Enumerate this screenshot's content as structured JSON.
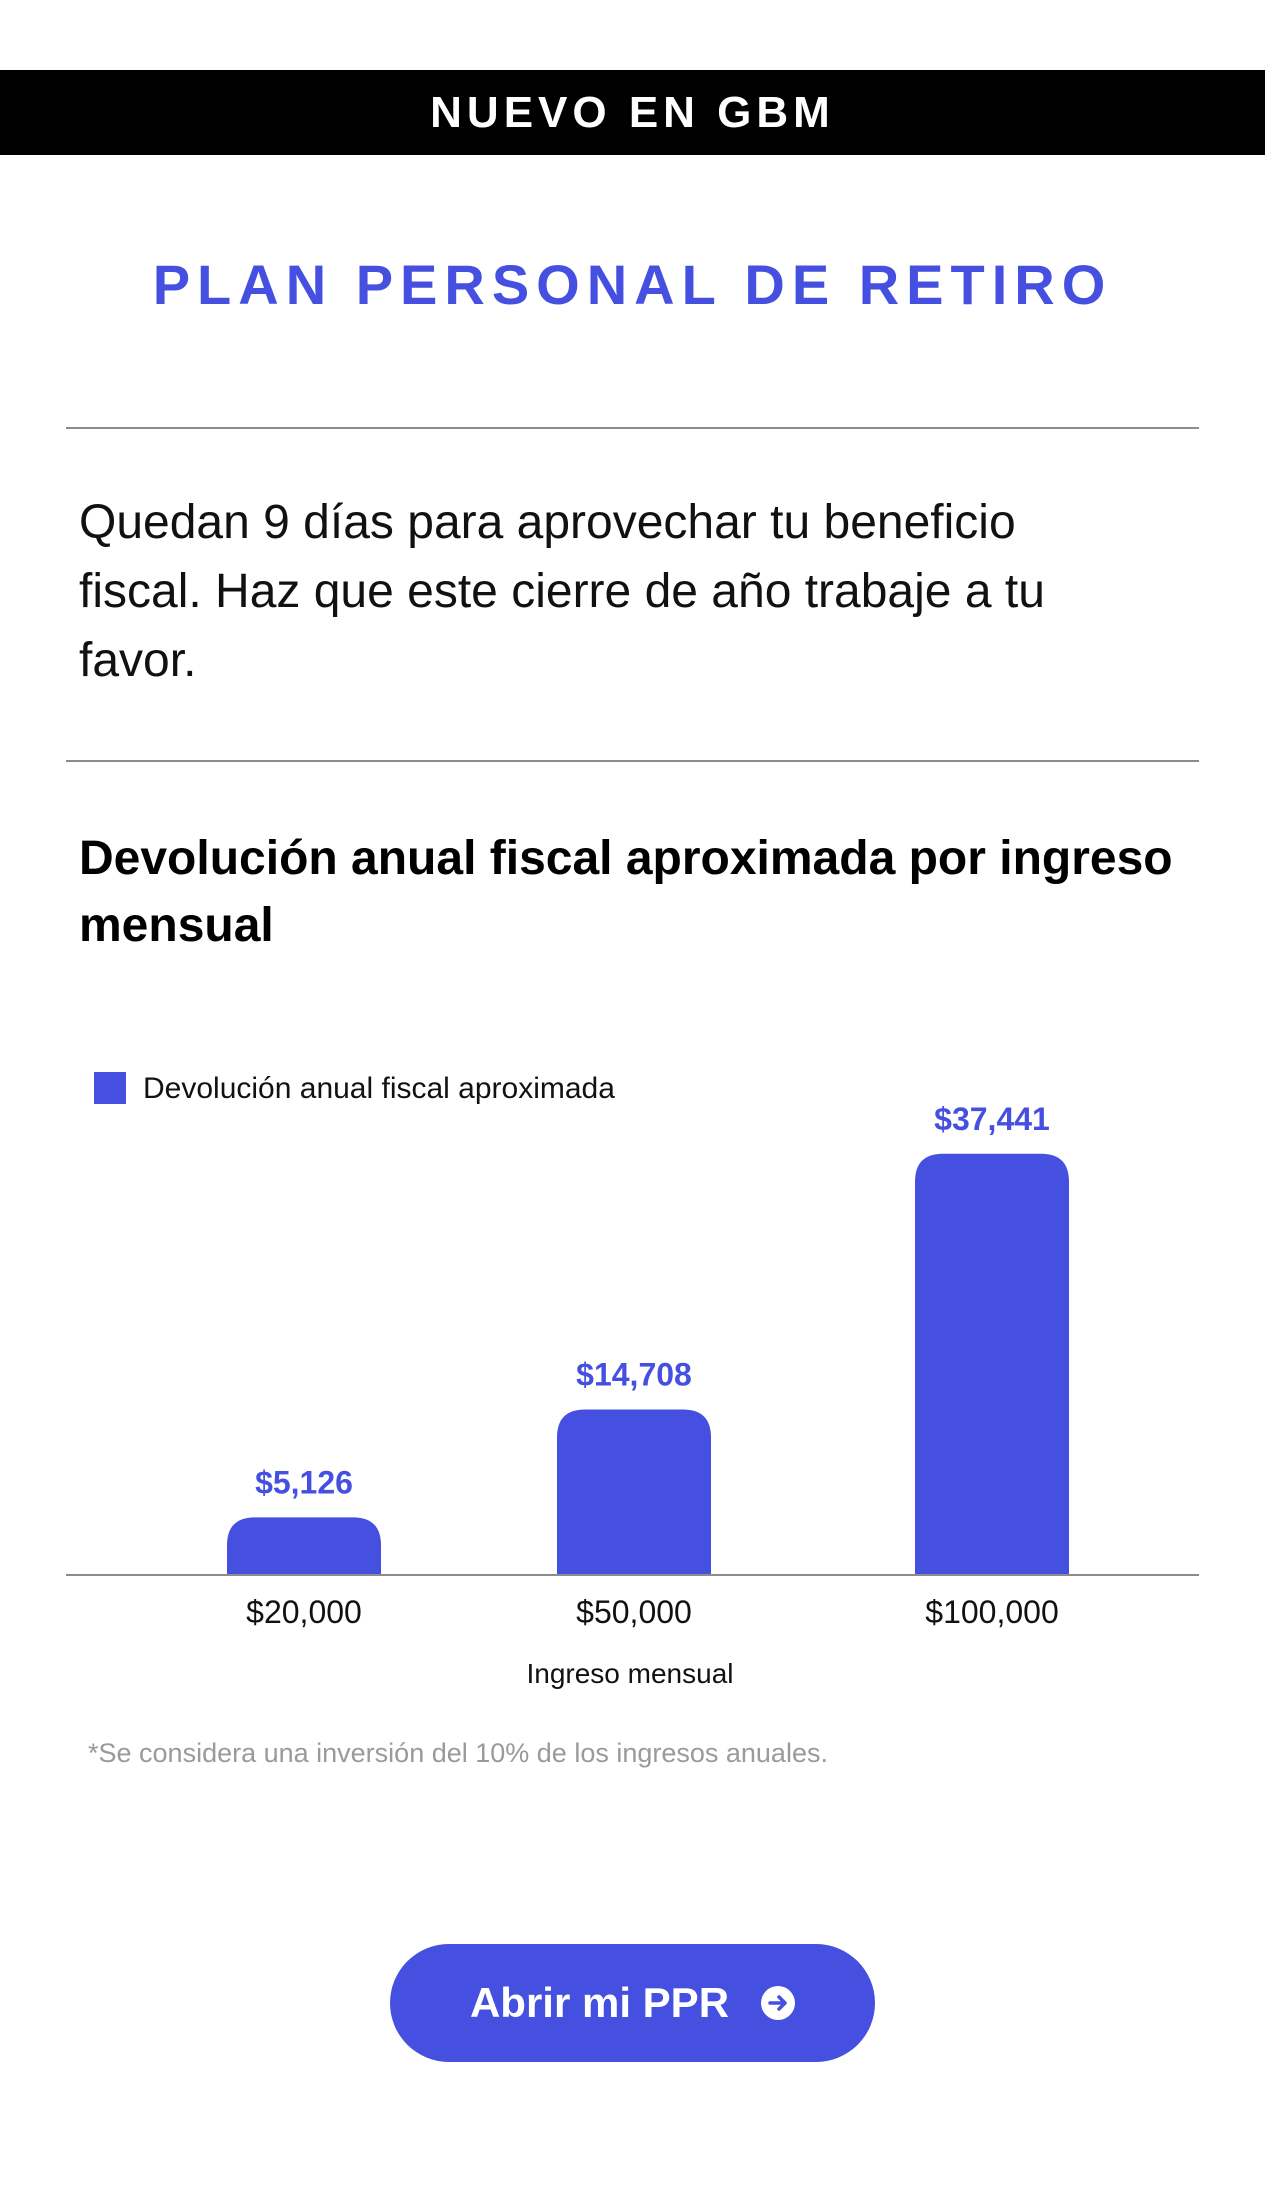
{
  "banner": {
    "text": "NUEVO EN GBM"
  },
  "header": {
    "title": "PLAN PERSONAL DE RETIRO"
  },
  "intro": {
    "text": "Quedan 9 días para aprovechar tu beneficio fiscal. Haz que este cierre de año trabaje a tu favor."
  },
  "chart_data": {
    "type": "bar",
    "title": "Devolución anual fiscal aproximada por ingreso mensual",
    "categories": [
      "$20,000",
      "$50,000",
      "$100,000"
    ],
    "series": [
      {
        "name": "Devolución anual fiscal aproximada",
        "values": [
          5126,
          14708,
          37441
        ],
        "color": "#4650e0"
      }
    ],
    "data_labels": [
      "$5,126",
      "$14,708",
      "$37,441"
    ],
    "xlabel": "Ingreso mensual",
    "ylabel": "",
    "ylim": [
      0,
      40000
    ],
    "grid": false,
    "legend": "top-left"
  },
  "footnote": {
    "text": "*Se considera una inversión del 10% de los ingresos anuales."
  },
  "cta": {
    "label": "Abrir mi PPR",
    "icon": "arrow-right-circle-icon"
  },
  "colors": {
    "accent": "#4650e0",
    "banner_bg": "#000000",
    "divider": "#8c8c8c"
  }
}
